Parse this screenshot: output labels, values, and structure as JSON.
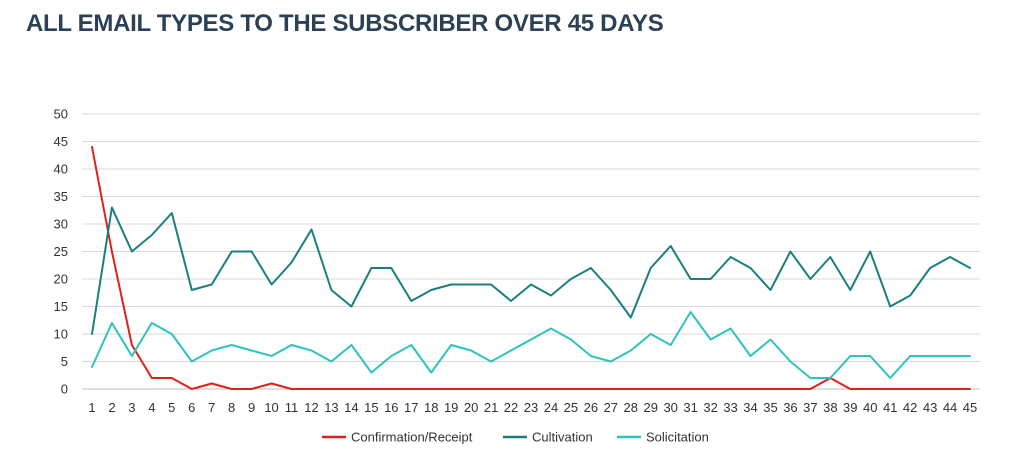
{
  "chart_data": {
    "type": "line",
    "title": "ALL EMAIL TYPES TO THE SUBSCRIBER OVER 45 DAYS",
    "x": [
      1,
      2,
      3,
      4,
      5,
      6,
      7,
      8,
      9,
      10,
      11,
      12,
      13,
      14,
      15,
      16,
      17,
      18,
      19,
      20,
      21,
      22,
      23,
      24,
      25,
      26,
      27,
      28,
      29,
      30,
      31,
      32,
      33,
      34,
      35,
      36,
      37,
      38,
      39,
      40,
      41,
      42,
      43,
      44,
      45
    ],
    "ylim": [
      0,
      50
    ],
    "yticks": [
      0,
      5,
      10,
      15,
      20,
      25,
      30,
      35,
      40,
      45,
      50
    ],
    "grid": true,
    "legend_position": "bottom",
    "series": [
      {
        "name": "Confirmation/Receipt",
        "color": "#e0201b",
        "values": [
          44,
          25,
          8,
          2,
          2,
          0,
          1,
          0,
          0,
          1,
          0,
          0,
          0,
          0,
          0,
          0,
          0,
          0,
          0,
          0,
          0,
          0,
          0,
          0,
          0,
          0,
          0,
          0,
          0,
          0,
          0,
          0,
          0,
          0,
          0,
          0,
          0,
          2,
          0,
          0,
          0,
          0,
          0,
          0,
          0
        ]
      },
      {
        "name": "Cultivation",
        "color": "#1b7f7f",
        "values": [
          10,
          33,
          25,
          28,
          32,
          18,
          19,
          25,
          25,
          19,
          23,
          29,
          18,
          15,
          22,
          22,
          16,
          18,
          19,
          19,
          19,
          16,
          19,
          17,
          20,
          22,
          18,
          13,
          22,
          26,
          20,
          20,
          24,
          22,
          18,
          25,
          20,
          24,
          18,
          25,
          15,
          17,
          22,
          24,
          22
        ]
      },
      {
        "name": "Solicitation",
        "color": "#2ec4bc",
        "values": [
          4,
          12,
          6,
          12,
          10,
          5,
          7,
          8,
          7,
          6,
          8,
          7,
          5,
          8,
          3,
          6,
          8,
          3,
          8,
          7,
          5,
          7,
          9,
          11,
          9,
          6,
          5,
          7,
          10,
          8,
          14,
          9,
          11,
          6,
          9,
          5,
          2,
          2,
          6,
          6,
          2,
          6,
          6,
          6,
          6
        ]
      }
    ]
  }
}
